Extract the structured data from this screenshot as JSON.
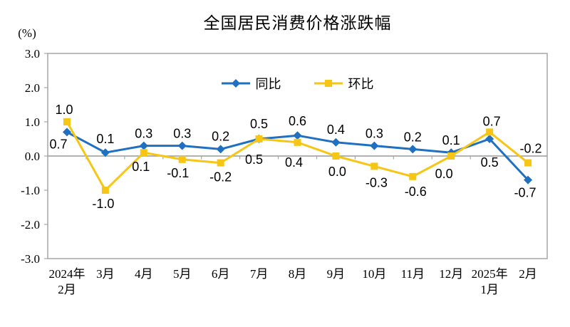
{
  "title": "全国居民消费价格涨跌幅",
  "unit_label": "(%)",
  "colors": {
    "tongbi_blue": "#1F70C1",
    "huanbi_gold": "#F7C614",
    "axis_gray": "#A6A6A6",
    "zero_line_gray": "#999999",
    "text_black": "#000000"
  },
  "chart_data": {
    "type": "line",
    "title": "全国居民消费价格涨跌幅",
    "xlabel": "",
    "ylabel": "(%)",
    "ylim": [
      -3.0,
      3.0
    ],
    "ytick_step": 1.0,
    "yticks": [
      "3.0",
      "2.0",
      "1.0",
      "0.0",
      "-1.0",
      "-2.0",
      "-3.0"
    ],
    "grid": false,
    "legend_position": "top-center",
    "categories": [
      [
        "2024年",
        "2月"
      ],
      [
        "3月"
      ],
      [
        "4月"
      ],
      [
        "5月"
      ],
      [
        "6月"
      ],
      [
        "7月"
      ],
      [
        "8月"
      ],
      [
        "9月"
      ],
      [
        "10月"
      ],
      [
        "11月"
      ],
      [
        "12月"
      ],
      [
        "2025年",
        "1月"
      ],
      [
        "2月"
      ]
    ],
    "series": [
      {
        "name": "同比",
        "color": "#1F70C1",
        "marker": "diamond",
        "values": [
          0.7,
          0.1,
          0.3,
          0.3,
          0.2,
          0.5,
          0.6,
          0.4,
          0.3,
          0.2,
          0.1,
          0.5,
          -0.7
        ],
        "label_offsets": [
          [
            -12,
            17
          ],
          [
            0,
            -19
          ],
          [
            0,
            -17
          ],
          [
            0,
            -17
          ],
          [
            0,
            -18
          ],
          [
            0,
            -21
          ],
          [
            0,
            -20
          ],
          [
            0,
            -18
          ],
          [
            0,
            -17
          ],
          [
            0,
            -17
          ],
          [
            0,
            -17
          ],
          [
            0,
            33
          ],
          [
            -4,
            18
          ]
        ]
      },
      {
        "name": "环比",
        "color": "#F7C614",
        "marker": "square",
        "values": [
          1.0,
          -1.0,
          0.1,
          -0.1,
          -0.2,
          0.5,
          0.4,
          0.0,
          -0.3,
          -0.6,
          0.0,
          0.7,
          -0.2
        ],
        "label_offsets": [
          [
            -4,
            -17
          ],
          [
            -3,
            19
          ],
          [
            -4,
            20
          ],
          [
            -6,
            19
          ],
          [
            0,
            20
          ],
          [
            -7,
            29
          ],
          [
            -5,
            28
          ],
          [
            2,
            22
          ],
          [
            3,
            23
          ],
          [
            4,
            21
          ],
          [
            -10,
            25
          ],
          [
            3,
            -15
          ],
          [
            4,
            -20
          ]
        ]
      }
    ]
  }
}
